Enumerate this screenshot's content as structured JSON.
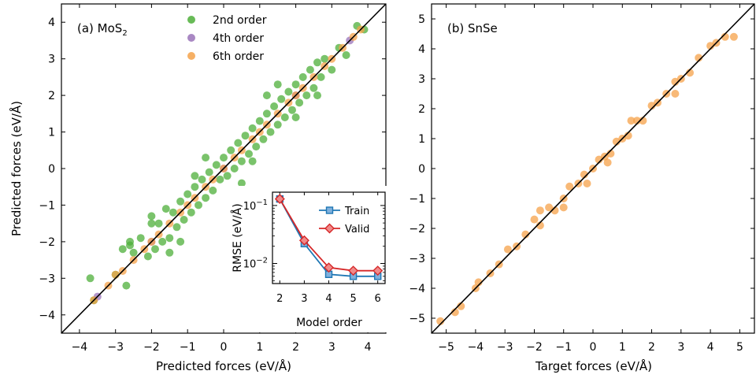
{
  "chart_data": [
    {
      "type": "scatter",
      "panel_label": "(a) MoS",
      "panel_label_sub": "2",
      "xlabel": "Predicted forces (eV/Å)",
      "ylabel": "Predicted forces (eV/Å)",
      "xlim": [
        -4.5,
        4.5
      ],
      "ylim": [
        -4.5,
        4.5
      ],
      "xticks": [
        -4,
        -3,
        -2,
        -1,
        0,
        1,
        2,
        3,
        4
      ],
      "yticks": [
        -4,
        -3,
        -2,
        -1,
        0,
        1,
        2,
        3,
        4
      ],
      "xtick_labels": [
        "−4",
        "−3",
        "−2",
        "−1",
        "0",
        "1",
        "2",
        "3",
        "4"
      ],
      "ytick_labels": [
        "−4",
        "−3",
        "−2",
        "−1",
        "0",
        "1",
        "2",
        "3",
        "4"
      ],
      "legend_position": "top-center",
      "reference_line": [
        [
          -4.5,
          -4.5
        ],
        [
          4.5,
          4.5
        ]
      ],
      "series": [
        {
          "name": "2nd order",
          "color": "#4daf3a",
          "points": [
            [
              -3.7,
              -3.0
            ],
            [
              -3.6,
              -3.6
            ],
            [
              -3.0,
              -2.9
            ],
            [
              -2.8,
              -2.2
            ],
            [
              -2.6,
              -2.1
            ],
            [
              -2.5,
              -2.3
            ],
            [
              -2.7,
              -3.2
            ],
            [
              -2.3,
              -1.9
            ],
            [
              -2.1,
              -2.4
            ],
            [
              -2.0,
              -1.5
            ],
            [
              -1.9,
              -2.2
            ],
            [
              -1.8,
              -1.5
            ],
            [
              -1.7,
              -2.0
            ],
            [
              -1.6,
              -1.1
            ],
            [
              -1.5,
              -1.9
            ],
            [
              -1.4,
              -1.2
            ],
            [
              -1.3,
              -1.6
            ],
            [
              -1.2,
              -0.9
            ],
            [
              -1.1,
              -1.4
            ],
            [
              -1.0,
              -0.7
            ],
            [
              -0.9,
              -1.2
            ],
            [
              -0.8,
              -0.5
            ],
            [
              -0.7,
              -1.0
            ],
            [
              -0.6,
              -0.3
            ],
            [
              -0.5,
              -0.8
            ],
            [
              -0.4,
              -0.1
            ],
            [
              -0.3,
              -0.6
            ],
            [
              -0.2,
              0.1
            ],
            [
              -0.1,
              -0.3
            ],
            [
              0.0,
              0.3
            ],
            [
              0.1,
              -0.2
            ],
            [
              0.2,
              0.5
            ],
            [
              0.3,
              0.0
            ],
            [
              0.4,
              0.7
            ],
            [
              0.5,
              0.2
            ],
            [
              0.6,
              0.9
            ],
            [
              0.7,
              0.4
            ],
            [
              0.8,
              1.1
            ],
            [
              0.9,
              0.6
            ],
            [
              1.0,
              1.3
            ],
            [
              1.1,
              0.8
            ],
            [
              1.2,
              1.5
            ],
            [
              1.3,
              1.0
            ],
            [
              1.4,
              1.7
            ],
            [
              1.5,
              1.2
            ],
            [
              1.6,
              1.9
            ],
            [
              1.7,
              1.4
            ],
            [
              1.8,
              2.1
            ],
            [
              1.9,
              1.6
            ],
            [
              2.0,
              2.3
            ],
            [
              2.1,
              1.8
            ],
            [
              2.2,
              2.5
            ],
            [
              2.3,
              2.0
            ],
            [
              2.4,
              2.7
            ],
            [
              2.5,
              2.2
            ],
            [
              2.6,
              2.9
            ],
            [
              2.7,
              2.5
            ],
            [
              2.8,
              3.0
            ],
            [
              3.0,
              2.7
            ],
            [
              3.2,
              3.3
            ],
            [
              3.4,
              3.1
            ],
            [
              3.7,
              3.9
            ],
            [
              3.9,
              3.8
            ],
            [
              -0.5,
              0.3
            ],
            [
              0.5,
              -0.4
            ],
            [
              1.5,
              2.3
            ],
            [
              -1.5,
              -2.3
            ],
            [
              2.0,
              1.4
            ],
            [
              -2.0,
              -1.3
            ],
            [
              0.8,
              0.2
            ],
            [
              -0.8,
              -0.2
            ],
            [
              1.2,
              2.0
            ],
            [
              -1.2,
              -2.0
            ],
            [
              2.6,
              2.0
            ],
            [
              -2.6,
              -2.0
            ]
          ]
        },
        {
          "name": "4th order",
          "color": "#9a73b9",
          "points": [
            [
              -3.5,
              -3.5
            ],
            [
              -2.0,
              -2.0
            ],
            [
              0.0,
              0.0
            ],
            [
              2.0,
              2.0
            ],
            [
              3.5,
              3.5
            ]
          ]
        },
        {
          "name": "6th order",
          "color": "#f5a24a",
          "points": [
            [
              -3.6,
              -3.6
            ],
            [
              -3.2,
              -3.2
            ],
            [
              -3.0,
              -2.9
            ],
            [
              -2.8,
              -2.8
            ],
            [
              -2.5,
              -2.5
            ],
            [
              -2.2,
              -2.2
            ],
            [
              -2.0,
              -2.0
            ],
            [
              -1.8,
              -1.8
            ],
            [
              -1.5,
              -1.5
            ],
            [
              -1.2,
              -1.2
            ],
            [
              -1.0,
              -1.0
            ],
            [
              -0.8,
              -0.8
            ],
            [
              -0.5,
              -0.5
            ],
            [
              -0.3,
              -0.3
            ],
            [
              0.0,
              0.0
            ],
            [
              0.3,
              0.3
            ],
            [
              0.5,
              0.5
            ],
            [
              0.8,
              0.8
            ],
            [
              1.0,
              1.0
            ],
            [
              1.2,
              1.2
            ],
            [
              1.5,
              1.5
            ],
            [
              1.8,
              1.8
            ],
            [
              2.0,
              2.0
            ],
            [
              2.2,
              2.2
            ],
            [
              2.5,
              2.5
            ],
            [
              2.8,
              2.8
            ],
            [
              3.0,
              3.0
            ],
            [
              3.3,
              3.3
            ],
            [
              3.6,
              3.6
            ],
            [
              3.8,
              3.8
            ]
          ]
        }
      ]
    },
    {
      "type": "scatter",
      "panel_label": "(b) SnSe",
      "xlabel": "Target forces (eV/Å)",
      "ylabel": "",
      "xlim": [
        -5.5,
        5.5
      ],
      "ylim": [
        -5.5,
        5.5
      ],
      "xticks": [
        -5,
        -4,
        -3,
        -2,
        -1,
        0,
        1,
        2,
        3,
        4,
        5
      ],
      "yticks": [
        -5,
        -4,
        -3,
        -2,
        -1,
        0,
        1,
        2,
        3,
        4,
        5
      ],
      "xtick_labels": [
        "−5",
        "−4",
        "−3",
        "−2",
        "−1",
        "0",
        "1",
        "2",
        "3",
        "4",
        "5"
      ],
      "ytick_labels": [
        "−5",
        "−4",
        "−3",
        "−2",
        "−1",
        "0",
        "1",
        "2",
        "3",
        "4",
        "5"
      ],
      "reference_line": [
        [
          -5.5,
          -5.5
        ],
        [
          5.5,
          5.5
        ]
      ],
      "series": [
        {
          "color": "#f5a24a",
          "points": [
            [
              -5.2,
              -5.1
            ],
            [
              -4.7,
              -4.8
            ],
            [
              -4.5,
              -4.6
            ],
            [
              -4.0,
              -4.0
            ],
            [
              -3.9,
              -3.8
            ],
            [
              -3.5,
              -3.5
            ],
            [
              -3.2,
              -3.2
            ],
            [
              -2.9,
              -2.7
            ],
            [
              -2.6,
              -2.6
            ],
            [
              -2.3,
              -2.2
            ],
            [
              -2.0,
              -1.7
            ],
            [
              -1.8,
              -1.9
            ],
            [
              -1.5,
              -1.3
            ],
            [
              -1.3,
              -1.4
            ],
            [
              -1.0,
              -1.0
            ],
            [
              -0.8,
              -0.6
            ],
            [
              -0.5,
              -0.5
            ],
            [
              -0.3,
              -0.2
            ],
            [
              0.0,
              0.0
            ],
            [
              0.2,
              0.3
            ],
            [
              0.4,
              0.4
            ],
            [
              0.6,
              0.5
            ],
            [
              0.8,
              0.9
            ],
            [
              1.0,
              1.0
            ],
            [
              1.2,
              1.1
            ],
            [
              1.5,
              1.6
            ],
            [
              1.7,
              1.6
            ],
            [
              2.0,
              2.1
            ],
            [
              2.2,
              2.2
            ],
            [
              2.5,
              2.5
            ],
            [
              2.8,
              2.9
            ],
            [
              3.0,
              3.0
            ],
            [
              3.3,
              3.2
            ],
            [
              3.6,
              3.7
            ],
            [
              4.0,
              4.1
            ],
            [
              4.2,
              4.2
            ],
            [
              4.5,
              4.4
            ],
            [
              4.8,
              4.4
            ],
            [
              -1.8,
              -1.4
            ],
            [
              -1.0,
              -1.3
            ],
            [
              1.3,
              1.6
            ],
            [
              0.5,
              0.2
            ],
            [
              -0.2,
              -0.5
            ],
            [
              2.8,
              2.5
            ]
          ]
        }
      ]
    },
    {
      "type": "line",
      "xlabel": "Model order",
      "ylabel": "RMSE (eV/Å)",
      "y_scale": "log",
      "xlim": [
        1.7,
        6.3
      ],
      "ylim": [
        0.0045,
        0.17
      ],
      "xticks": [
        2,
        3,
        4,
        5,
        6
      ],
      "xtick_labels": [
        "2",
        "3",
        "4",
        "5",
        "6"
      ],
      "yticks": [
        0.01,
        0.1
      ],
      "ytick_labels_base": "10",
      "ytick_labels_exp": [
        "−2",
        "−1"
      ],
      "legend_position": "top-right",
      "series": [
        {
          "name": "Train",
          "color": "#1f77b4",
          "fill": "#7fb0dd",
          "marker": "square",
          "x": [
            2,
            3,
            4,
            5,
            6
          ],
          "values": [
            0.13,
            0.022,
            0.0065,
            0.006,
            0.006
          ]
        },
        {
          "name": "Valid",
          "color": "#d62728",
          "fill": "#f08a8a",
          "marker": "diamond",
          "x": [
            2,
            3,
            4,
            5,
            6
          ],
          "values": [
            0.13,
            0.025,
            0.0085,
            0.0075,
            0.0075
          ]
        }
      ]
    }
  ]
}
